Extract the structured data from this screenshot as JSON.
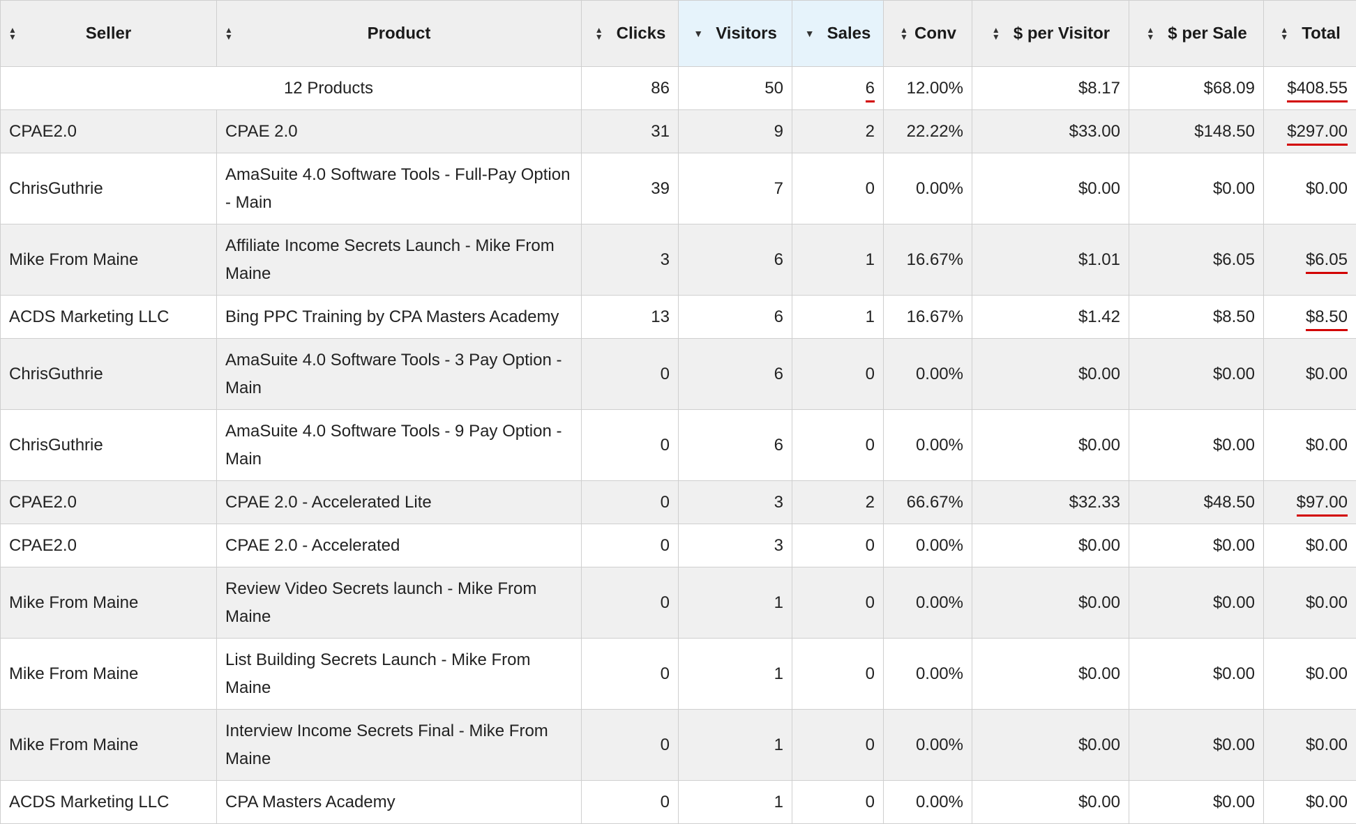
{
  "table": {
    "headers": [
      {
        "key": "seller",
        "label": "Seller",
        "sort": "both"
      },
      {
        "key": "product",
        "label": "Product",
        "sort": "both"
      },
      {
        "key": "clicks",
        "label": "Clicks",
        "sort": "both"
      },
      {
        "key": "visitors",
        "label": "Visitors",
        "sort": "desc"
      },
      {
        "key": "sales",
        "label": "Sales",
        "sort": "desc"
      },
      {
        "key": "conv",
        "label": "Conv",
        "sort": "both"
      },
      {
        "key": "per_visitor",
        "label": "$ per Visitor",
        "sort": "both"
      },
      {
        "key": "per_sale",
        "label": "$ per Sale",
        "sort": "both"
      },
      {
        "key": "total",
        "label": "Total",
        "sort": "both"
      }
    ],
    "summary": {
      "label": "12 Products",
      "clicks": "86",
      "visitors": "50",
      "sales": "6",
      "conv": "12.00%",
      "per_visitor": "$8.17",
      "per_sale": "$68.09",
      "total": "$408.55"
    },
    "rows": [
      {
        "seller": "CPAE2.0",
        "product": "CPAE 2.0",
        "clicks": "31",
        "visitors": "9",
        "sales": "2",
        "conv": "22.22%",
        "per_visitor": "$33.00",
        "per_sale": "$148.50",
        "total": "$297.00"
      },
      {
        "seller": "ChrisGuthrie",
        "product": "AmaSuite 4.0 Software Tools - Full-Pay Option - Main",
        "clicks": "39",
        "visitors": "7",
        "sales": "0",
        "conv": "0.00%",
        "per_visitor": "$0.00",
        "per_sale": "$0.00",
        "total": "$0.00"
      },
      {
        "seller": "Mike From Maine",
        "product": "Affiliate Income Secrets Launch - Mike From Maine",
        "clicks": "3",
        "visitors": "6",
        "sales": "1",
        "conv": "16.67%",
        "per_visitor": "$1.01",
        "per_sale": "$6.05",
        "total": "$6.05"
      },
      {
        "seller": "ACDS Marketing LLC",
        "product": "Bing PPC Training by CPA Masters Academy",
        "clicks": "13",
        "visitors": "6",
        "sales": "1",
        "conv": "16.67%",
        "per_visitor": "$1.42",
        "per_sale": "$8.50",
        "total": "$8.50"
      },
      {
        "seller": "ChrisGuthrie",
        "product": "AmaSuite 4.0 Software Tools - 3 Pay Option - Main",
        "clicks": "0",
        "visitors": "6",
        "sales": "0",
        "conv": "0.00%",
        "per_visitor": "$0.00",
        "per_sale": "$0.00",
        "total": "$0.00"
      },
      {
        "seller": "ChrisGuthrie",
        "product": "AmaSuite 4.0 Software Tools - 9 Pay Option - Main",
        "clicks": "0",
        "visitors": "6",
        "sales": "0",
        "conv": "0.00%",
        "per_visitor": "$0.00",
        "per_sale": "$0.00",
        "total": "$0.00"
      },
      {
        "seller": "CPAE2.0",
        "product": "CPAE 2.0 - Accelerated Lite",
        "clicks": "0",
        "visitors": "3",
        "sales": "2",
        "conv": "66.67%",
        "per_visitor": "$32.33",
        "per_sale": "$48.50",
        "total": "$97.00"
      },
      {
        "seller": "CPAE2.0",
        "product": "CPAE 2.0 - Accelerated",
        "clicks": "0",
        "visitors": "3",
        "sales": "0",
        "conv": "0.00%",
        "per_visitor": "$0.00",
        "per_sale": "$0.00",
        "total": "$0.00"
      },
      {
        "seller": "Mike From Maine",
        "product": "Review Video Secrets launch - Mike From Maine",
        "clicks": "0",
        "visitors": "1",
        "sales": "0",
        "conv": "0.00%",
        "per_visitor": "$0.00",
        "per_sale": "$0.00",
        "total": "$0.00"
      },
      {
        "seller": "Mike From Maine",
        "product": "List Building Secrets Launch - Mike From Maine",
        "clicks": "0",
        "visitors": "1",
        "sales": "0",
        "conv": "0.00%",
        "per_visitor": "$0.00",
        "per_sale": "$0.00",
        "total": "$0.00"
      },
      {
        "seller": "Mike From Maine",
        "product": "Interview Income Secrets Final - Mike From Maine",
        "clicks": "0",
        "visitors": "1",
        "sales": "0",
        "conv": "0.00%",
        "per_visitor": "$0.00",
        "per_sale": "$0.00",
        "total": "$0.00"
      },
      {
        "seller": "ACDS Marketing LLC",
        "product": "CPA Masters Academy",
        "clicks": "0",
        "visitors": "1",
        "sales": "0",
        "conv": "0.00%",
        "per_visitor": "$0.00",
        "per_sale": "$0.00",
        "total": "$0.00"
      }
    ]
  },
  "colors": {
    "header_bg": "#efefef",
    "active_header_bg": "#e6f3fb",
    "stripe_bg": "#f0f0f0",
    "highlight_underline": "#d20000"
  }
}
